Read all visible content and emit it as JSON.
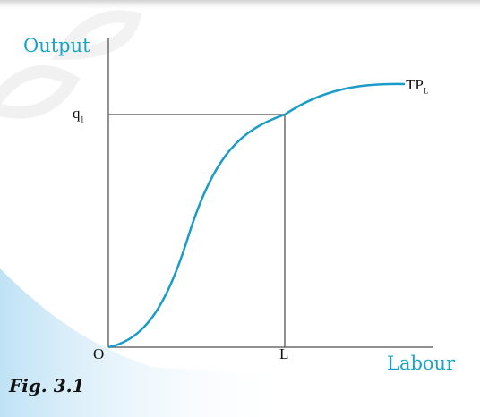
{
  "figure": {
    "caption": "Fig. 3.1",
    "y_axis_label": "Output",
    "x_axis_label": "Labour",
    "origin_label": "O",
    "y_marker": {
      "base": "q",
      "sub": "1"
    },
    "x_marker": "L",
    "curve": {
      "base": "TP",
      "sub": "L"
    },
    "colors": {
      "curve": "#1a9bc9",
      "axis_titles": "#1ba3c6",
      "lines": "#6b6b6b",
      "band": "#d6edf9",
      "watermark": "#ececec"
    }
  }
}
